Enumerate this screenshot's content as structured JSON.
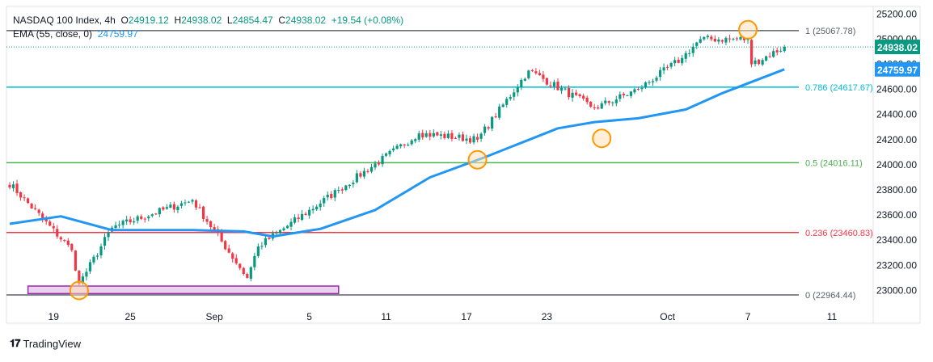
{
  "chart_data": {
    "type": "candlestick",
    "title": "NASDAQ 100 Index",
    "timeframe": "4h",
    "ohlc": {
      "open_label": "O",
      "open": "24919.12",
      "high_label": "H",
      "high": "24938.02",
      "low_label": "L",
      "low": "24854.47",
      "close_label": "C",
      "close": "24938.02",
      "change": "+19.54 (+0.08%)"
    },
    "ema": {
      "label": "EMA (55, close, 0)",
      "value_text": "24759.97",
      "value": 24759.97,
      "color": "#2196f3"
    },
    "last_price": {
      "text": "24938.02",
      "value": 24938.02,
      "color": "#089981"
    },
    "ylim": [
      22900,
      25260
    ],
    "y_ticks": [
      23000,
      23200,
      23400,
      23600,
      23800,
      24000,
      24200,
      24400,
      24600,
      24800,
      25000,
      25200
    ],
    "y_tick_labels": [
      "23000.00",
      "23200.00",
      "23400.00",
      "23600.00",
      "23800.00",
      "24000.00",
      "24200.00",
      "24400.00",
      "24600.00",
      "24800.00",
      "25000.00",
      "25200.00"
    ],
    "x_ticks": [
      {
        "bar": 12,
        "label": "19"
      },
      {
        "bar": 33,
        "label": "25"
      },
      {
        "bar": 56,
        "label": "Sep"
      },
      {
        "bar": 82,
        "label": "5"
      },
      {
        "bar": 103,
        "label": "11"
      },
      {
        "bar": 125,
        "label": "17"
      },
      {
        "bar": 147,
        "label": "23"
      },
      {
        "bar": 180,
        "label": "Oct"
      },
      {
        "bar": 202,
        "label": "7"
      },
      {
        "bar": 225,
        "label": "11"
      }
    ],
    "fib_levels": [
      {
        "label": "1 (25067.78)",
        "value": 25067.78,
        "color": "#5d606b"
      },
      {
        "label": "0.786 (24617.67)",
        "value": 24617.67,
        "color": "#00bcd4"
      },
      {
        "label": "0.5 (24016.11)",
        "value": 24016.11,
        "color": "#4caf50"
      },
      {
        "label": "0.236 (23460.83)",
        "value": 23460.83,
        "color": "#f23645"
      },
      {
        "label": "0 (22964.44)",
        "value": 22964.44,
        "color": "#5d606b"
      }
    ],
    "key_points": [
      {
        "date": "Aug 20",
        "bar": 17,
        "close": 23320
      },
      {
        "date": "Aug 21",
        "bar": 19,
        "close": 23050
      },
      {
        "date": "Aug 25",
        "bar": 28,
        "close": 23500
      },
      {
        "date": "Aug 28",
        "bar": 50,
        "close": 23720
      },
      {
        "date": "Sep 2",
        "bar": 65,
        "close": 23100
      },
      {
        "date": "Sep 3",
        "bar": 68,
        "close": 23350
      },
      {
        "date": "Sep 9",
        "bar": 90,
        "close": 23800
      },
      {
        "date": "Sep 15",
        "bar": 112,
        "close": 24250
      },
      {
        "date": "Sep 18",
        "bar": 128,
        "close": 24200
      },
      {
        "date": "Sep 22",
        "bar": 142,
        "close": 24750
      },
      {
        "date": "Sep 26",
        "bar": 160,
        "close": 24450
      },
      {
        "date": "Sep 30",
        "bar": 172,
        "close": 24600
      },
      {
        "date": "Oct 2",
        "bar": 184,
        "close": 24850
      },
      {
        "date": "Oct 3",
        "bar": 189,
        "close": 25000
      },
      {
        "date": "Oct 7",
        "bar": 202,
        "close": 25000
      },
      {
        "date": "Oct 7",
        "bar": 203,
        "close": 24800
      },
      {
        "date": "Oct 9",
        "bar": 212,
        "close": 24938.02
      }
    ],
    "ema_points": [
      {
        "bar": 0,
        "value": 23530
      },
      {
        "bar": 14,
        "value": 23590
      },
      {
        "bar": 28,
        "value": 23480
      },
      {
        "bar": 50,
        "value": 23480
      },
      {
        "bar": 64,
        "value": 23470
      },
      {
        "bar": 72,
        "value": 23430
      },
      {
        "bar": 85,
        "value": 23490
      },
      {
        "bar": 100,
        "value": 23640
      },
      {
        "bar": 115,
        "value": 23900
      },
      {
        "bar": 130,
        "value": 24060
      },
      {
        "bar": 150,
        "value": 24290
      },
      {
        "bar": 160,
        "value": 24340
      },
      {
        "bar": 172,
        "value": 24370
      },
      {
        "bar": 185,
        "value": 24440
      },
      {
        "bar": 195,
        "value": 24570
      },
      {
        "bar": 212,
        "value": 24759.97
      }
    ],
    "support_zone": {
      "bar_start": 5,
      "bar_end": 90,
      "price_low": 22975,
      "price_high": 23035,
      "fill": "#e1bee7",
      "stroke": "#9c27b0"
    },
    "highlight_circles": [
      {
        "bar": 19,
        "price": 23000
      },
      {
        "bar": 128,
        "price": 24040
      },
      {
        "bar": 162,
        "price": 24210
      },
      {
        "bar": 202,
        "price": 25075
      }
    ],
    "colors": {
      "up": "#089981",
      "down": "#f23645",
      "ema": "#2196f3",
      "circle": "#ff9800",
      "circle_fill": "#ffe0b2"
    }
  },
  "footer": {
    "brand": "TradingView"
  }
}
